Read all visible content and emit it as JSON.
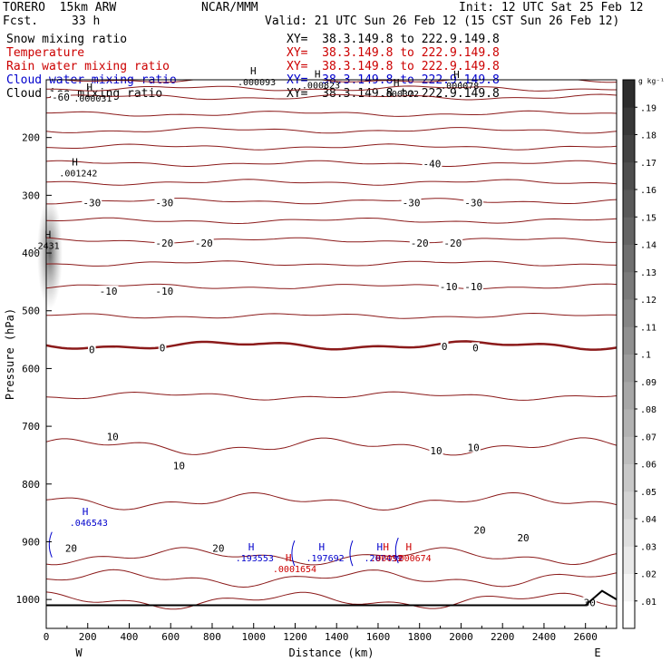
{
  "header": {
    "model": "TORERO  15km ARW",
    "center": "NCAR/MMM",
    "init": "Init: 12 UTC Sat 25 Feb 12",
    "fcst_label": "Fcst.",
    "fcst_value": "33 h",
    "valid": "Valid: 21 UTC Sun 26 Feb 12 (15 CST Sun 26 Feb 12)"
  },
  "fields": [
    {
      "label": "Snow mixing ratio",
      "color": "#000000",
      "xy": "XY=  38.3.149.8 to 222.9.149.8"
    },
    {
      "label": "Temperature",
      "color": "#cc0000",
      "xy": "XY=  38.3.149.8 to 222.9.149.8"
    },
    {
      "label": "Rain water mixing ratio",
      "color": "#cc0000",
      "xy": "XY=  38.3.149.8 to 222.9.149.8"
    },
    {
      "label": "Cloud water mixing ratio",
      "color": "#0000cc",
      "xy": "XY=  38.3.149.8 to 222.9.149.8"
    },
    {
      "label": "Cloud ice mixing ratio",
      "color": "#000000",
      "xy": "XY=  38.3.149.8 to 222.9.149.8"
    }
  ],
  "colorbar": {
    "unit": "g kg⁻¹",
    "ticks": [
      ".01",
      ".02",
      ".03",
      ".04",
      ".05",
      ".06",
      ".07",
      ".08",
      ".09",
      ".1",
      ".11",
      ".12",
      ".13",
      ".14",
      ".15",
      ".16",
      ".17",
      ".18",
      ".19"
    ]
  },
  "chart_data": {
    "type": "contour",
    "xlabel": "Distance (km)",
    "ylabel": "Pressure (hPa)",
    "xlim": [
      0,
      2750
    ],
    "ylim": [
      1050,
      100
    ],
    "x_ticks": [
      0,
      200,
      400,
      600,
      800,
      1000,
      1200,
      1400,
      1600,
      1800,
      2000,
      2200,
      2400,
      2600
    ],
    "y_ticks": [
      200,
      300,
      400,
      500,
      600,
      700,
      800,
      900,
      1000
    ],
    "end_labels": {
      "left": "W",
      "right": "E"
    },
    "temperature_contours": [
      {
        "value": -60,
        "pressure": 130
      },
      {
        "value": -40,
        "pressure": 245
      },
      {
        "value": -30,
        "pressure": 310
      },
      {
        "value": -20,
        "pressure": 378
      },
      {
        "value": -10,
        "pressure": 458
      },
      {
        "value": 0,
        "pressure": 560
      },
      {
        "value": 10,
        "pressure": 735
      },
      {
        "value": 20,
        "pressure": 925
      },
      {
        "value": 30,
        "pressure": 1002
      }
    ],
    "temperature_labels": [
      {
        "text": "-60",
        "x": 70,
        "p": 130
      },
      {
        "text": "-40",
        "x": 1860,
        "p": 245
      },
      {
        "text": "-30",
        "x": 220,
        "p": 313
      },
      {
        "text": "-30",
        "x": 570,
        "p": 313
      },
      {
        "text": "-30",
        "x": 1760,
        "p": 313
      },
      {
        "text": "-30",
        "x": 2060,
        "p": 313
      },
      {
        "text": "-20",
        "x": 570,
        "p": 383
      },
      {
        "text": "-20",
        "x": 760,
        "p": 383
      },
      {
        "text": "-20",
        "x": 1800,
        "p": 383
      },
      {
        "text": "-20",
        "x": 1960,
        "p": 383
      },
      {
        "text": "-10",
        "x": 300,
        "p": 466
      },
      {
        "text": "-10",
        "x": 570,
        "p": 466
      },
      {
        "text": "-10",
        "x": 1940,
        "p": 458
      },
      {
        "text": "-10",
        "x": 2060,
        "p": 458
      },
      {
        "text": "0",
        "x": 220,
        "p": 567
      },
      {
        "text": "0",
        "x": 560,
        "p": 564
      },
      {
        "text": "0",
        "x": 1920,
        "p": 562
      },
      {
        "text": "0",
        "x": 2070,
        "p": 564
      },
      {
        "text": "10",
        "x": 320,
        "p": 718
      },
      {
        "text": "10",
        "x": 640,
        "p": 768
      },
      {
        "text": "10",
        "x": 1880,
        "p": 742
      },
      {
        "text": "10",
        "x": 2060,
        "p": 737
      },
      {
        "text": "20",
        "x": 120,
        "p": 911
      },
      {
        "text": "20",
        "x": 830,
        "p": 911
      },
      {
        "text": "20",
        "x": 2090,
        "p": 880
      },
      {
        "text": "20",
        "x": 2300,
        "p": 893
      },
      {
        "text": "30",
        "x": 2620,
        "p": 1005
      }
    ],
    "maxima": [
      {
        "field": "Snow",
        "value": ".000031",
        "x": 220,
        "p": 125
      },
      {
        "field": "Snow",
        "value": ".001242",
        "x": 150,
        "p": 255
      },
      {
        "field": "Snow",
        "value": ".000093",
        "x": 1010,
        "p": 97
      },
      {
        "field": "Snow",
        "value": ".000823",
        "x": 1320,
        "p": 102
      },
      {
        "field": "Snow",
        "value": ".000372",
        "x": 1700,
        "p": 117
      },
      {
        "field": "Snow",
        "value": ".000078",
        "x": 1990,
        "p": 103
      },
      {
        "field": "Cloud water",
        "value": ".046543",
        "x": 200,
        "p": 860
      },
      {
        "field": "Cloud water",
        "value": ".193553",
        "x": 1000,
        "p": 921
      },
      {
        "field": "Cloud water",
        "value": ".197692",
        "x": 1340,
        "p": 921
      },
      {
        "field": "Cloud water",
        "value": ".207439",
        "x": 1620,
        "p": 921
      },
      {
        "field": "Rain water",
        "value": ".0001654",
        "x": 1180,
        "p": 940
      },
      {
        "field": "Rain water",
        "value": ".00092",
        "x": 1650,
        "p": 921
      },
      {
        "field": "Rain water",
        "value": ".000674",
        "x": 1760,
        "p": 921
      },
      {
        "field": "Cloud ice",
        "value": ".2431",
        "x": 20,
        "p": 380
      }
    ]
  }
}
